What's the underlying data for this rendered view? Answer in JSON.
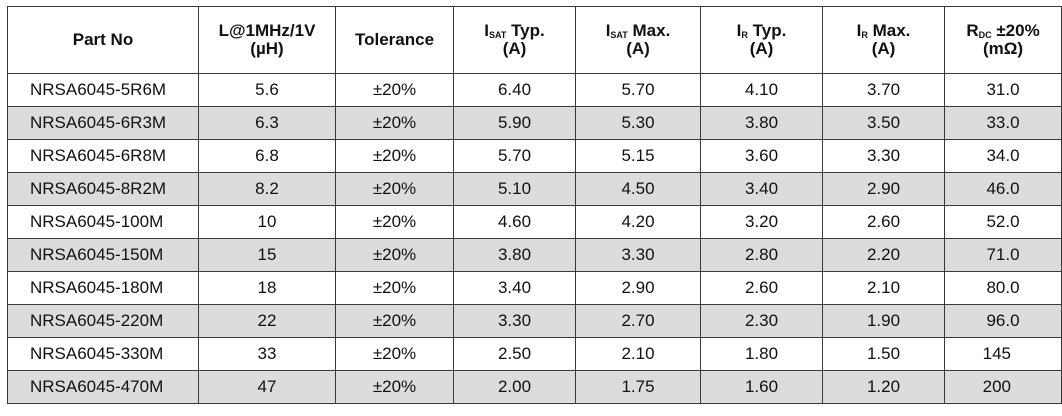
{
  "headers": {
    "part_no": "Part No",
    "inductance_l1": "L@1MHz/1V",
    "inductance_l2": "(µH)",
    "tolerance": "Tolerance",
    "isat_typ_sym": "I",
    "isat_typ_sub": "SAT",
    "isat_typ_rest": "Typ.",
    "isat_typ_unit": "(A)",
    "isat_max_sym": "I",
    "isat_max_sub": "SAT",
    "isat_max_rest": "Max.",
    "isat_max_unit": "(A)",
    "ir_typ_sym": "I",
    "ir_typ_sub": "R",
    "ir_typ_rest": "Typ.",
    "ir_typ_unit": "(A)",
    "ir_max_sym": "I",
    "ir_max_sub": "R",
    "ir_max_rest": "Max.",
    "ir_max_unit": "(A)",
    "rdc_sym": "R",
    "rdc_sub": "DC",
    "rdc_rest": "±20%",
    "rdc_unit": "(mΩ)"
  },
  "rows": [
    [
      "NRSA6045-5R6M",
      "5.6",
      "±20%",
      "6.40",
      "5.70",
      "4.10",
      "3.70",
      "31.0"
    ],
    [
      "NRSA6045-6R3M",
      "6.3",
      "±20%",
      "5.90",
      "5.30",
      "3.80",
      "3.50",
      "33.0"
    ],
    [
      "NRSA6045-6R8M",
      "6.8",
      "±20%",
      "5.70",
      "5.15",
      "3.60",
      "3.30",
      "34.0"
    ],
    [
      "NRSA6045-8R2M",
      "8.2",
      "±20%",
      "5.10",
      "4.50",
      "3.40",
      "2.90",
      "46.0"
    ],
    [
      "NRSA6045-100M",
      "10",
      "±20%",
      "4.60",
      "4.20",
      "3.20",
      "2.60",
      "52.0"
    ],
    [
      "NRSA6045-150M",
      "15",
      "±20%",
      "3.80",
      "3.30",
      "2.80",
      "2.20",
      "71.0"
    ],
    [
      "NRSA6045-180M",
      "18",
      "±20%",
      "3.40",
      "2.90",
      "2.60",
      "2.10",
      "80.0"
    ],
    [
      "NRSA6045-220M",
      "22",
      "±20%",
      "3.30",
      "2.70",
      "2.30",
      "1.90",
      "96.0"
    ],
    [
      "NRSA6045-330M",
      "33",
      "±20%",
      "2.50",
      "2.10",
      "1.80",
      "1.50",
      "145"
    ],
    [
      "NRSA6045-470M",
      "47",
      "±20%",
      "2.00",
      "1.75",
      "1.60",
      "1.20",
      "200"
    ]
  ]
}
